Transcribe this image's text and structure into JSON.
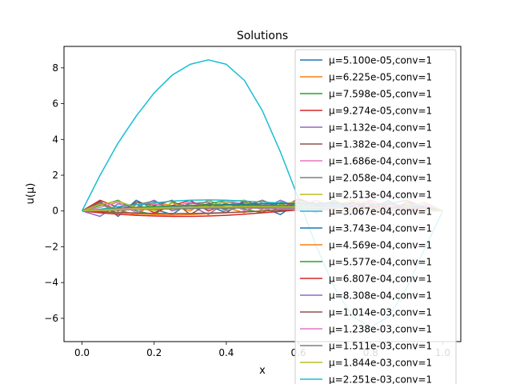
{
  "chart_data": {
    "type": "line",
    "title": "Solutions",
    "xlabel": "x",
    "ylabel": "u(μ)",
    "xlim": [
      -0.05,
      1.05
    ],
    "ylim": [
      -7.3,
      9.2
    ],
    "xticks": [
      "0.0",
      "0.2",
      "0.4",
      "0.6",
      "0.8",
      "1.0"
    ],
    "xtick_values": [
      0.0,
      0.2,
      0.4,
      0.6,
      0.8,
      1.0
    ],
    "yticks": [
      "−6",
      "−4",
      "−2",
      "0",
      "2",
      "4",
      "6",
      "8"
    ],
    "ytick_values": [
      -6,
      -4,
      -2,
      0,
      2,
      4,
      6,
      8
    ],
    "grid": false,
    "legend_position": "top-right",
    "x": [
      0.0,
      0.05,
      0.1,
      0.15,
      0.2,
      0.25,
      0.3,
      0.35,
      0.4,
      0.45,
      0.5,
      0.55,
      0.6,
      0.65,
      0.7,
      0.75,
      0.8,
      0.85,
      0.9,
      0.95,
      1.0
    ],
    "series": [
      {
        "name": "μ=5.100e-05,conv=1",
        "color": "#1f77b4",
        "values": [
          0.0,
          0.55,
          -0.3,
          0.6,
          0.1,
          -0.2,
          0.5,
          0.3,
          -0.1,
          0.6,
          0.2,
          -0.2,
          0.5,
          0.1,
          0.4,
          -0.1,
          0.6,
          0.2,
          0.3,
          0.1,
          0.0
        ]
      },
      {
        "name": "μ=6.225e-05,conv=1",
        "color": "#ff7f0e",
        "values": [
          0.0,
          0.4,
          0.1,
          -0.25,
          0.5,
          0.3,
          0.0,
          0.6,
          0.2,
          -0.1,
          0.5,
          0.4,
          0.1,
          0.6,
          -0.2,
          0.3,
          0.5,
          0.0,
          0.4,
          0.2,
          0.0
        ]
      },
      {
        "name": "μ=7.598e-05,conv=1",
        "color": "#2ca02c",
        "values": [
          0.0,
          0.3,
          0.6,
          0.0,
          -0.2,
          0.5,
          0.2,
          0.4,
          0.6,
          0.1,
          -0.1,
          0.5,
          0.3,
          0.2,
          0.6,
          0.0,
          0.3,
          0.5,
          0.1,
          0.3,
          0.0
        ]
      },
      {
        "name": "μ=9.274e-05,conv=1",
        "color": "#d62728",
        "values": [
          0.0,
          0.6,
          0.2,
          0.4,
          -0.1,
          0.3,
          0.6,
          0.0,
          0.4,
          0.2,
          0.6,
          0.1,
          0.7,
          0.3,
          0.2,
          0.5,
          0.0,
          0.4,
          0.6,
          0.2,
          0.0
        ]
      },
      {
        "name": "μ=1.132e-04,conv=1",
        "color": "#9467bd",
        "values": [
          0.0,
          -0.3,
          0.4,
          0.2,
          0.6,
          0.0,
          0.3,
          -0.2,
          0.5,
          0.4,
          0.1,
          0.6,
          0.2,
          -0.1,
          0.5,
          0.3,
          0.1,
          0.6,
          0.0,
          0.3,
          0.0
        ]
      },
      {
        "name": "μ=1.382e-04,conv=1",
        "color": "#8c564b",
        "values": [
          0.0,
          0.5,
          0.0,
          0.5,
          0.3,
          0.6,
          -0.2,
          0.4,
          0.1,
          0.5,
          0.3,
          0.0,
          0.6,
          0.4,
          0.1,
          0.5,
          0.2,
          -0.1,
          0.5,
          0.1,
          0.0
        ]
      },
      {
        "name": "μ=1.686e-04,conv=1",
        "color": "#e377c2",
        "values": [
          0.0,
          0.2,
          0.5,
          -0.1,
          0.4,
          0.2,
          0.5,
          0.1,
          0.6,
          0.0,
          0.4,
          0.2,
          0.3,
          0.6,
          0.1,
          0.4,
          0.6,
          0.2,
          0.1,
          0.4,
          0.0
        ]
      },
      {
        "name": "μ=2.058e-04,conv=1",
        "color": "#7f7f7f",
        "values": [
          0.0,
          0.45,
          -0.15,
          0.35,
          0.55,
          0.1,
          0.4,
          0.5,
          0.0,
          0.3,
          0.6,
          0.2,
          0.0,
          0.4,
          0.5,
          0.1,
          0.3,
          0.4,
          0.6,
          0.0,
          0.0
        ]
      },
      {
        "name": "μ=2.513e-04,conv=1",
        "color": "#bcbd22",
        "values": [
          0.0,
          0.35,
          0.55,
          0.2,
          0.0,
          0.45,
          0.1,
          0.3,
          0.5,
          0.6,
          0.0,
          0.35,
          0.55,
          0.2,
          0.3,
          0.6,
          0.4,
          0.1,
          0.2,
          0.5,
          0.0
        ]
      },
      {
        "name": "μ=3.067e-04,conv=1",
        "color": "#17becf",
        "values": [
          0.0,
          0.1,
          0.25,
          0.35,
          0.45,
          0.55,
          0.6,
          0.62,
          0.6,
          0.55,
          0.5,
          0.45,
          0.4,
          0.35,
          0.3,
          0.25,
          0.2,
          0.15,
          0.1,
          0.05,
          0.0
        ]
      },
      {
        "name": "μ=3.743e-04,conv=1",
        "color": "#1f77b4",
        "values": [
          0.0,
          0.05,
          0.1,
          0.15,
          0.2,
          0.25,
          0.3,
          0.33,
          0.36,
          0.38,
          0.4,
          0.41,
          0.42,
          0.42,
          0.41,
          0.4,
          0.38,
          0.35,
          0.3,
          0.2,
          0.0
        ]
      },
      {
        "name": "μ=4.569e-04,conv=1",
        "color": "#ff7f0e",
        "values": [
          0.0,
          -0.05,
          -0.1,
          -0.15,
          -0.2,
          -0.22,
          -0.2,
          -0.15,
          -0.1,
          -0.05,
          0.0,
          0.05,
          0.1,
          0.15,
          0.2,
          0.22,
          0.2,
          0.15,
          0.1,
          0.05,
          0.0
        ]
      },
      {
        "name": "μ=5.577e-04,conv=1",
        "color": "#2ca02c",
        "values": [
          0.0,
          0.08,
          0.15,
          0.2,
          0.25,
          0.28,
          0.3,
          0.31,
          0.32,
          0.32,
          0.31,
          0.3,
          0.28,
          0.26,
          0.23,
          0.2,
          0.17,
          0.13,
          0.09,
          0.05,
          0.0
        ]
      },
      {
        "name": "μ=6.807e-04,conv=1",
        "color": "#d62728",
        "values": [
          0.0,
          -0.1,
          -0.18,
          -0.24,
          -0.28,
          -0.3,
          -0.3,
          -0.28,
          -0.24,
          -0.18,
          -0.1,
          -0.02,
          0.06,
          0.14,
          0.2,
          0.24,
          0.26,
          0.24,
          0.18,
          0.1,
          0.0
        ]
      },
      {
        "name": "μ=8.308e-04,conv=1",
        "color": "#9467bd",
        "values": [
          0.0,
          0.03,
          0.06,
          0.09,
          0.12,
          0.15,
          0.17,
          0.19,
          0.21,
          0.22,
          0.23,
          0.24,
          0.24,
          0.24,
          0.23,
          0.22,
          0.2,
          0.17,
          0.13,
          0.07,
          0.0
        ]
      },
      {
        "name": "μ=1.014e-03,conv=1",
        "color": "#8c564b",
        "values": [
          0.0,
          -0.04,
          -0.08,
          -0.11,
          -0.13,
          -0.14,
          -0.14,
          -0.12,
          -0.09,
          -0.05,
          0.0,
          0.05,
          0.09,
          0.12,
          0.14,
          0.14,
          0.13,
          0.1,
          0.07,
          0.03,
          0.0
        ]
      },
      {
        "name": "μ=1.238e-03,conv=1",
        "color": "#e377c2",
        "values": [
          0.0,
          0.06,
          0.11,
          0.15,
          0.18,
          0.2,
          0.21,
          0.21,
          0.2,
          0.18,
          0.15,
          0.12,
          0.09,
          0.07,
          0.05,
          0.04,
          0.03,
          0.02,
          0.01,
          0.0,
          0.0
        ]
      },
      {
        "name": "μ=1.511e-03,conv=1",
        "color": "#7f7f7f",
        "values": [
          0.0,
          0.02,
          0.05,
          0.08,
          0.1,
          0.12,
          0.14,
          0.15,
          0.16,
          0.17,
          0.17,
          0.17,
          0.16,
          0.15,
          0.14,
          0.12,
          0.1,
          0.08,
          0.06,
          0.03,
          0.0
        ]
      },
      {
        "name": "μ=1.844e-03,conv=1",
        "color": "#bcbd22",
        "values": [
          0.0,
          0.04,
          0.08,
          0.12,
          0.15,
          0.18,
          0.2,
          0.22,
          0.23,
          0.24,
          0.24,
          0.23,
          0.22,
          0.2,
          0.18,
          0.15,
          0.12,
          0.09,
          0.06,
          0.03,
          0.0
        ]
      },
      {
        "name": "μ=2.251e-03,conv=1",
        "color": "#17becf",
        "values": [
          0.0,
          2.0,
          3.8,
          5.3,
          6.6,
          7.6,
          8.2,
          8.45,
          8.2,
          7.3,
          5.6,
          3.3,
          0.7,
          -2.0,
          -4.3,
          -5.9,
          -6.5,
          -5.9,
          -4.3,
          -2.1,
          0.0
        ]
      }
    ]
  }
}
